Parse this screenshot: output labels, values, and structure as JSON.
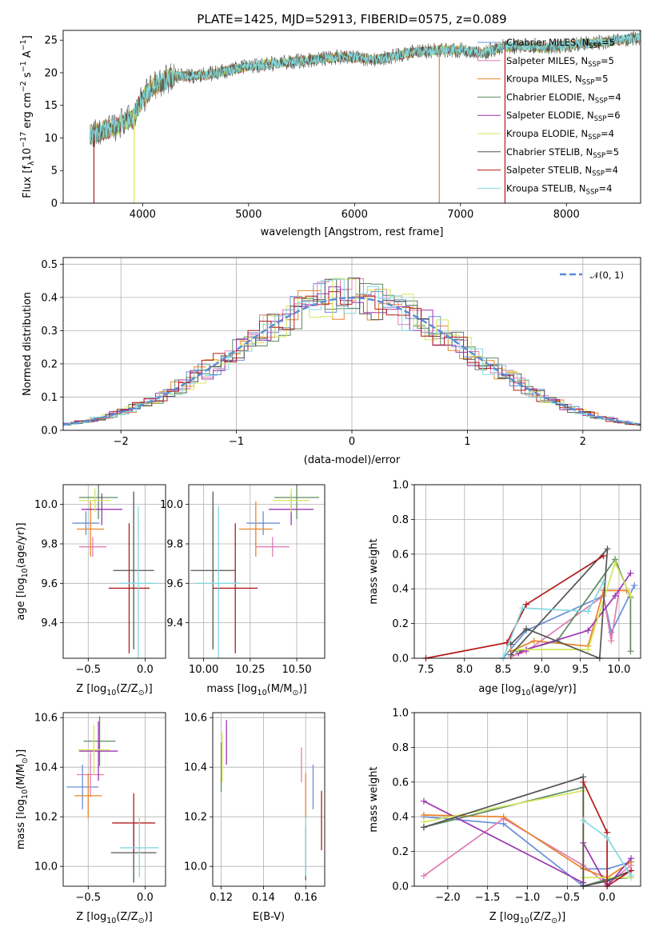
{
  "title": "PLATE=1425, MJD=52913, FIBERID=0575, z=0.089",
  "colors": {
    "Chabrier MILES": "#6a8fd6",
    "Salpeter MILES": "#e07db5",
    "Kroupa MILES": "#e8842a",
    "Chabrier ELODIE": "#5c8a60",
    "Salpeter ELODIE": "#9b34b0",
    "Kroupa ELODIE": "#d4e65a",
    "Chabrier STELIB": "#555555",
    "Salpeter STELIB": "#b31b1b",
    "Kroupa STELIB": "#84d8e0",
    "gauss": "#5b8ad6"
  },
  "chart_data": [
    {
      "type": "line",
      "name": "spectrum",
      "title": "PLATE=1425, MJD=52913, FIBERID=0575, z=0.089",
      "xlabel": "wavelength [Angstrom, rest frame]",
      "ylabel": "Flux [f",
      "ylabel_parts": [
        "λ",
        "10",
        "−17",
        " erg cm",
        "−2",
        " s",
        "−1",
        " A",
        "−1",
        "]"
      ],
      "xlim": [
        3250,
        8700
      ],
      "ylim": [
        0,
        26.5
      ],
      "xticks": [
        "4000",
        "5000",
        "6000",
        "7000",
        "8000"
      ],
      "yticks": [
        "0",
        "5",
        "10",
        "15",
        "20",
        "25"
      ],
      "legend_location": "right",
      "legend": [
        {
          "label": "Chabrier MILES, N",
          "sub": "SSP",
          "value": "=5"
        },
        {
          "label": "Salpeter MILES, N",
          "sub": "SSP",
          "value": "=5"
        },
        {
          "label": "Kroupa MILES, N",
          "sub": "SSP",
          "value": "=5"
        },
        {
          "label": "Chabrier ELODIE, N",
          "sub": "SSP",
          "value": "=4"
        },
        {
          "label": "Salpeter ELODIE, N",
          "sub": "SSP",
          "value": "=6"
        },
        {
          "label": "Kroupa ELODIE, N",
          "sub": "SSP",
          "value": "=4"
        },
        {
          "label": "Chabrier STELIB, N",
          "sub": "SSP",
          "value": "=5"
        },
        {
          "label": "Salpeter STELIB, N",
          "sub": "SSP",
          "value": "=4"
        },
        {
          "label": "Kroupa STELIB, N",
          "sub": "SSP",
          "value": "=4"
        }
      ],
      "continuum": [
        [
          3500,
          10.5
        ],
        [
          3700,
          11.5
        ],
        [
          3900,
          13
        ],
        [
          4000,
          16
        ],
        [
          4100,
          18
        ],
        [
          4300,
          19.5
        ],
        [
          4500,
          19.5
        ],
        [
          4700,
          20
        ],
        [
          5000,
          21
        ],
        [
          5300,
          21.5
        ],
        [
          5600,
          22
        ],
        [
          5900,
          22.5
        ],
        [
          6200,
          22
        ],
        [
          6500,
          23
        ],
        [
          6800,
          23.5
        ],
        [
          7000,
          23.5
        ],
        [
          7200,
          23
        ],
        [
          7400,
          24
        ],
        [
          7600,
          24
        ],
        [
          7800,
          23.8
        ],
        [
          8000,
          24.2
        ],
        [
          8200,
          24.5
        ],
        [
          8400,
          24.8
        ],
        [
          8600,
          25.2
        ],
        [
          8700,
          25.3
        ]
      ],
      "drops": [
        {
          "x": 3540,
          "series": "Salpeter STELIB"
        },
        {
          "x": 3920,
          "series": "Kroupa ELODIE"
        },
        {
          "x": 6800,
          "series": "Kroupa MILES"
        },
        {
          "x": 7420,
          "series": "Salpeter STELIB"
        }
      ]
    },
    {
      "type": "histogram",
      "name": "residuals",
      "xlabel": "(data-model)/error",
      "ylabel": "Normed distribution",
      "xlim": [
        -2.5,
        2.5
      ],
      "ylim": [
        0,
        0.52
      ],
      "xticks": [
        "−2",
        "−1",
        "0",
        "1",
        "2"
      ],
      "yticks": [
        "0.0",
        "0.1",
        "0.2",
        "0.3",
        "0.4",
        "0.5"
      ],
      "legend": "𝒩(0, 1)",
      "bin_width": 0.1
    },
    {
      "type": "scatter",
      "name": "z-age",
      "xlabel": "Z [log",
      "xlabel_parts": [
        "10",
        "(Z/Z",
        "⊙",
        ")]"
      ],
      "ylabel": "age  [log",
      "ylabel_parts": [
        "10",
        "(age/yr)]"
      ],
      "xlim": [
        -0.72,
        0.18
      ],
      "ylim": [
        9.22,
        10.1
      ],
      "xticks": [
        "−0.5",
        "0.0"
      ],
      "yticks": [
        "9.4",
        "9.6",
        "9.8",
        "10.0"
      ],
      "points": [
        {
          "series": "Chabrier MILES",
          "x": -0.52,
          "y": 9.905,
          "xerr": 0.12,
          "yerr": 0.06
        },
        {
          "series": "Salpeter MILES",
          "x": -0.46,
          "y": 9.785,
          "xerr": 0.12,
          "yerr": 0.05
        },
        {
          "series": "Kroupa MILES",
          "x": -0.48,
          "y": 9.875,
          "xerr": 0.12,
          "yerr": 0.14
        },
        {
          "series": "Chabrier ELODIE",
          "x": -0.41,
          "y": 10.035,
          "xerr": 0.17,
          "yerr": 0.11
        },
        {
          "series": "Salpeter ELODIE",
          "x": -0.38,
          "y": 9.975,
          "xerr": 0.18,
          "yerr": 0.08
        },
        {
          "series": "Kroupa ELODIE",
          "x": -0.44,
          "y": 10.02,
          "xerr": 0.14,
          "yerr": 0.06
        },
        {
          "series": "Chabrier STELIB",
          "x": -0.1,
          "y": 9.665,
          "xerr": 0.18,
          "yerr": 0.4
        },
        {
          "series": "Salpeter STELIB",
          "x": -0.14,
          "y": 9.575,
          "xerr": 0.18,
          "yerr": 0.33
        },
        {
          "series": "Kroupa STELIB",
          "x": -0.06,
          "y": 9.6,
          "xerr": 0.17,
          "yerr": 0.39
        }
      ]
    },
    {
      "type": "scatter",
      "name": "mass-age",
      "xlabel": "mass [log",
      "xlabel_parts": [
        "10",
        "(M/M",
        "⊙",
        ")]"
      ],
      "ylabel": "",
      "xlim": [
        9.92,
        10.65
      ],
      "ylim": [
        9.22,
        10.1
      ],
      "xticks": [
        "10.00",
        "10.25",
        "10.50"
      ],
      "yticks": [
        "9.4",
        "9.6",
        "9.8",
        "10.0"
      ],
      "points": [
        {
          "series": "Chabrier MILES",
          "x": 10.32,
          "y": 9.905,
          "xerr": 0.09,
          "yerr": 0.06
        },
        {
          "series": "Salpeter MILES",
          "x": 10.37,
          "y": 9.785,
          "xerr": 0.09,
          "yerr": 0.05
        },
        {
          "series": "Kroupa MILES",
          "x": 10.28,
          "y": 9.875,
          "xerr": 0.09,
          "yerr": 0.14
        },
        {
          "series": "Chabrier ELODIE",
          "x": 10.5,
          "y": 10.035,
          "xerr": 0.12,
          "yerr": 0.11
        },
        {
          "series": "Salpeter ELODIE",
          "x": 10.47,
          "y": 9.975,
          "xerr": 0.12,
          "yerr": 0.08
        },
        {
          "series": "Kroupa ELODIE",
          "x": 10.47,
          "y": 10.02,
          "xerr": 0.1,
          "yerr": 0.06
        },
        {
          "series": "Chabrier STELIB",
          "x": 10.05,
          "y": 9.665,
          "xerr": 0.12,
          "yerr": 0.4
        },
        {
          "series": "Salpeter STELIB",
          "x": 10.17,
          "y": 9.575,
          "xerr": 0.12,
          "yerr": 0.33
        },
        {
          "series": "Kroupa STELIB",
          "x": 10.08,
          "y": 9.6,
          "xerr": 0.12,
          "yerr": 0.39
        }
      ]
    },
    {
      "type": "line",
      "name": "age-weight",
      "xlabel": "age  [log",
      "xlabel_parts": [
        "10",
        "(age/yr)]"
      ],
      "ylabel": "mass weight",
      "xlim": [
        7.35,
        10.28
      ],
      "ylim": [
        0,
        1
      ],
      "xticks": [
        "7.5",
        "8.0",
        "8.5",
        "9.0",
        "9.5",
        "10.0"
      ],
      "yticks": [
        "0.0",
        "0.2",
        "0.4",
        "0.6",
        "0.8",
        "1.0"
      ],
      "series": [
        {
          "name": "Chabrier MILES",
          "points": [
            [
              8.5,
              0.0
            ],
            [
              8.8,
              0.16
            ],
            [
              9.8,
              0.36
            ],
            [
              9.9,
              0.15
            ],
            [
              10.2,
              0.42
            ]
          ]
        },
        {
          "name": "Salpeter MILES",
          "points": [
            [
              8.6,
              0.01
            ],
            [
              8.8,
              0.04
            ],
            [
              9.8,
              0.36
            ],
            [
              9.9,
              0.1
            ],
            [
              10.0,
              0.39
            ]
          ]
        },
        {
          "name": "Kroupa MILES",
          "points": [
            [
              8.6,
              0.04
            ],
            [
              8.9,
              0.1
            ],
            [
              9.6,
              0.07
            ],
            [
              9.8,
              0.39
            ],
            [
              10.1,
              0.39
            ]
          ]
        },
        {
          "name": "Chabrier ELODIE",
          "points": [
            [
              8.7,
              0.04
            ],
            [
              9.2,
              0.1
            ],
            [
              9.95,
              0.57
            ],
            [
              10.15,
              0.35
            ],
            [
              10.15,
              0.04
            ]
          ]
        },
        {
          "name": "Salpeter ELODIE",
          "points": [
            [
              8.7,
              0.03
            ],
            [
              8.8,
              0.05
            ],
            [
              9.6,
              0.16
            ],
            [
              9.95,
              0.36
            ],
            [
              10.15,
              0.49
            ]
          ]
        },
        {
          "name": "Kroupa ELODIE",
          "points": [
            [
              8.7,
              0.05
            ],
            [
              9.6,
              0.05
            ],
            [
              9.95,
              0.55
            ],
            [
              10.15,
              0.36
            ]
          ]
        },
        {
          "name": "Chabrier STELIB",
          "points": [
            [
              8.6,
              0.02
            ],
            [
              9.85,
              0.63
            ],
            [
              9.75,
              0.0
            ],
            [
              8.8,
              0.17
            ],
            [
              8.6,
              0.08
            ]
          ]
        },
        {
          "name": "Salpeter STELIB",
          "points": [
            [
              7.5,
              0.0
            ],
            [
              8.55,
              0.09
            ],
            [
              8.8,
              0.31
            ],
            [
              9.8,
              0.59
            ]
          ]
        },
        {
          "name": "Kroupa STELIB",
          "points": [
            [
              8.5,
              0.0
            ],
            [
              8.75,
              0.29
            ],
            [
              9.6,
              0.27
            ],
            [
              9.8,
              0.44
            ]
          ]
        }
      ]
    },
    {
      "type": "scatter",
      "name": "z-mass",
      "xlabel": "Z [log",
      "xlabel_parts": [
        "10",
        "(Z/Z",
        "⊙",
        ")]"
      ],
      "ylabel": "mass [log",
      "ylabel_parts": [
        "10",
        "(M/M",
        "⊙",
        ")]"
      ],
      "xlim": [
        -0.72,
        0.18
      ],
      "ylim": [
        9.92,
        10.62
      ],
      "xticks": [
        "−0.5",
        "0.0"
      ],
      "yticks": [
        "10.0",
        "10.2",
        "10.4",
        "10.6"
      ],
      "points": [
        {
          "series": "Chabrier MILES",
          "x": -0.55,
          "y": 10.32,
          "xerr": 0.14,
          "yerr": 0.09
        },
        {
          "series": "Salpeter MILES",
          "x": -0.48,
          "y": 10.37,
          "xerr": 0.12,
          "yerr": 0.09
        },
        {
          "series": "Kroupa MILES",
          "x": -0.5,
          "y": 10.285,
          "xerr": 0.12,
          "yerr": 0.09
        },
        {
          "series": "Chabrier ELODIE",
          "x": -0.4,
          "y": 10.505,
          "xerr": 0.14,
          "yerr": 0.1
        },
        {
          "series": "Salpeter ELODIE",
          "x": -0.41,
          "y": 10.465,
          "xerr": 0.17,
          "yerr": 0.12
        },
        {
          "series": "Kroupa ELODIE",
          "x": -0.45,
          "y": 10.47,
          "xerr": 0.14,
          "yerr": 0.1
        },
        {
          "series": "Chabrier STELIB",
          "x": -0.1,
          "y": 10.055,
          "xerr": 0.2,
          "yerr": 0.12
        },
        {
          "series": "Salpeter STELIB",
          "x": -0.1,
          "y": 10.175,
          "xerr": 0.19,
          "yerr": 0.12
        },
        {
          "series": "Kroupa STELIB",
          "x": -0.05,
          "y": 10.075,
          "xerr": 0.17,
          "yerr": 0.12
        }
      ]
    },
    {
      "type": "scatter",
      "name": "ebv-mass",
      "xlabel": "E(B-V)",
      "ylabel": "",
      "xlim": [
        0.116,
        0.169
      ],
      "ylim": [
        9.92,
        10.62
      ],
      "xticks": [
        "0.12",
        "0.14",
        "0.16"
      ],
      "yticks": [
        "10.0",
        "10.2",
        "10.4",
        "10.6"
      ],
      "points": [
        {
          "series": "Chabrier MILES",
          "x": 0.1635,
          "y": 10.32,
          "yerr": 0.09
        },
        {
          "series": "Salpeter MILES",
          "x": 0.158,
          "y": 10.41,
          "yerr": 0.07
        },
        {
          "series": "Kroupa MILES",
          "x": 0.16,
          "y": 10.285,
          "yerr": 0.09
        },
        {
          "series": "Chabrier ELODIE",
          "x": 0.12,
          "y": 10.4,
          "yerr": 0.1
        },
        {
          "series": "Salpeter ELODIE",
          "x": 0.1225,
          "y": 10.5,
          "yerr": 0.09
        },
        {
          "series": "Kroupa ELODIE",
          "x": 0.1205,
          "y": 10.44,
          "yerr": 0.1
        },
        {
          "series": "Chabrier STELIB",
          "x": 0.16,
          "y": 10.055,
          "yerr": 0.11
        },
        {
          "series": "Salpeter STELIB",
          "x": 0.1675,
          "y": 10.185,
          "yerr": 0.12
        },
        {
          "series": "Kroupa STELIB",
          "x": 0.16,
          "y": 10.08,
          "yerr": 0.12
        }
      ]
    },
    {
      "type": "line",
      "name": "z-weight",
      "xlabel": "Z [log",
      "xlabel_parts": [
        "10",
        "(Z/Z",
        "⊙",
        ")]"
      ],
      "ylabel": "mass weight",
      "xlim": [
        -2.42,
        0.42
      ],
      "ylim": [
        0,
        1
      ],
      "xticks": [
        "−2.0",
        "−1.5",
        "−1.0",
        "−0.5",
        "0.0"
      ],
      "yticks": [
        "0.0",
        "0.2",
        "0.4",
        "0.6",
        "0.8",
        "1.0"
      ],
      "series": [
        {
          "name": "Chabrier MILES",
          "points": [
            [
              -2.3,
              0.4
            ],
            [
              -1.3,
              0.36
            ],
            [
              -0.3,
              0.0
            ],
            [
              -0.3,
              0.1
            ],
            [
              0.0,
              0.1
            ],
            [
              0.3,
              0.14
            ]
          ]
        },
        {
          "name": "Salpeter MILES",
          "points": [
            [
              -2.3,
              0.06
            ],
            [
              -1.3,
              0.39
            ],
            [
              -0.3,
              0.12
            ],
            [
              0.0,
              0.01
            ],
            [
              0.3,
              0.12
            ]
          ]
        },
        {
          "name": "Kroupa MILES",
          "points": [
            [
              -2.3,
              0.41
            ],
            [
              -1.3,
              0.4
            ],
            [
              -0.3,
              0.1
            ],
            [
              0.0,
              0.05
            ],
            [
              0.3,
              0.14
            ]
          ]
        },
        {
          "name": "Chabrier ELODIE",
          "points": [
            [
              -2.3,
              0.34
            ],
            [
              -0.3,
              0.57
            ],
            [
              -0.3,
              0.0
            ],
            [
              0.0,
              0.04
            ],
            [
              0.3,
              0.05
            ]
          ]
        },
        {
          "name": "Salpeter ELODIE",
          "points": [
            [
              -2.3,
              0.49
            ],
            [
              -0.3,
              0.02
            ],
            [
              -0.3,
              0.25
            ],
            [
              0.0,
              0.0
            ],
            [
              0.3,
              0.16
            ]
          ]
        },
        {
          "name": "Kroupa ELODIE",
          "points": [
            [
              -2.3,
              0.37
            ],
            [
              -0.3,
              0.55
            ],
            [
              -0.3,
              0.05
            ],
            [
              0.0,
              0.05
            ],
            [
              0.3,
              0.05
            ]
          ]
        },
        {
          "name": "Chabrier STELIB",
          "points": [
            [
              -2.3,
              0.34
            ],
            [
              -0.3,
              0.63
            ],
            [
              -0.3,
              0.0
            ],
            [
              0.0,
              0.03
            ],
            [
              0.3,
              0.09
            ]
          ]
        },
        {
          "name": "Salpeter STELIB",
          "points": [
            [
              -0.3,
              0.6
            ],
            [
              0.0,
              0.31
            ],
            [
              0.0,
              0.0
            ],
            [
              0.3,
              0.09
            ]
          ]
        },
        {
          "name": "Kroupa STELIB",
          "points": [
            [
              -0.3,
              0.38
            ],
            [
              0.0,
              0.28
            ],
            [
              0.3,
              0.06
            ]
          ]
        }
      ]
    }
  ]
}
